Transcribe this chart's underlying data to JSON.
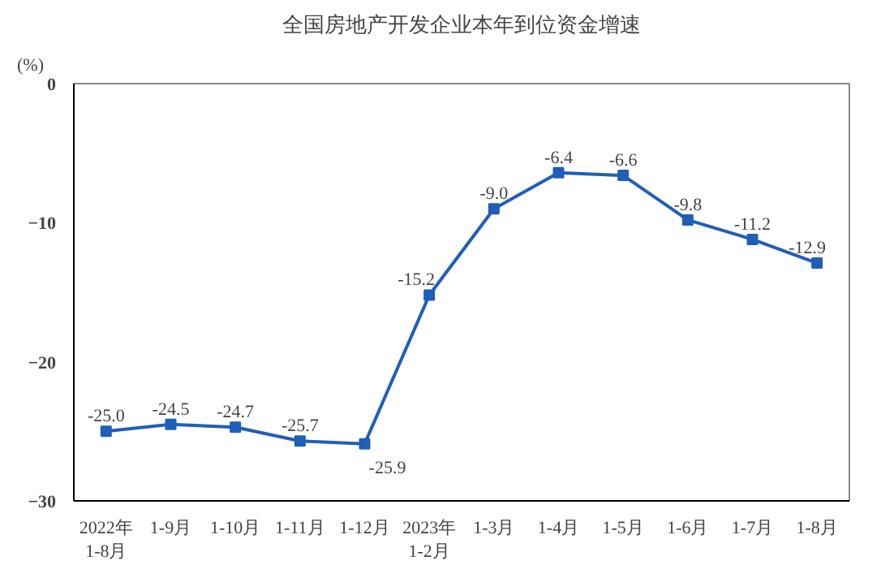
{
  "chart_data": {
    "type": "line",
    "title": "全国房地产开发企业本年到位资金增速",
    "ylabel": "(%)",
    "categories": [
      "2022年\n1-8月",
      "1-9月",
      "1-10月",
      "1-11月",
      "1-12月",
      "2023年\n1-2月",
      "1-3月",
      "1-4月",
      "1-5月",
      "1-6月",
      "1-7月",
      "1-8月"
    ],
    "series": [
      {
        "color": "#1f5fb8",
        "values": [
          -25.0,
          -24.5,
          -24.7,
          -25.7,
          -25.9,
          -15.2,
          -9.0,
          -6.4,
          -6.6,
          -9.8,
          -11.2,
          -12.9
        ],
        "value_labels": [
          "-25.0",
          "-24.5",
          "-24.7",
          "-25.7",
          "-25.9",
          "-15.2",
          "-9.0",
          "-6.4",
          "-6.6",
          "-9.8",
          "-11.2",
          "-12.9"
        ]
      }
    ],
    "ylim": [
      -30,
      0
    ],
    "yticks": [
      -30,
      -20,
      -10,
      0
    ],
    "grid": false,
    "marker": "square",
    "line_style": "solid"
  }
}
